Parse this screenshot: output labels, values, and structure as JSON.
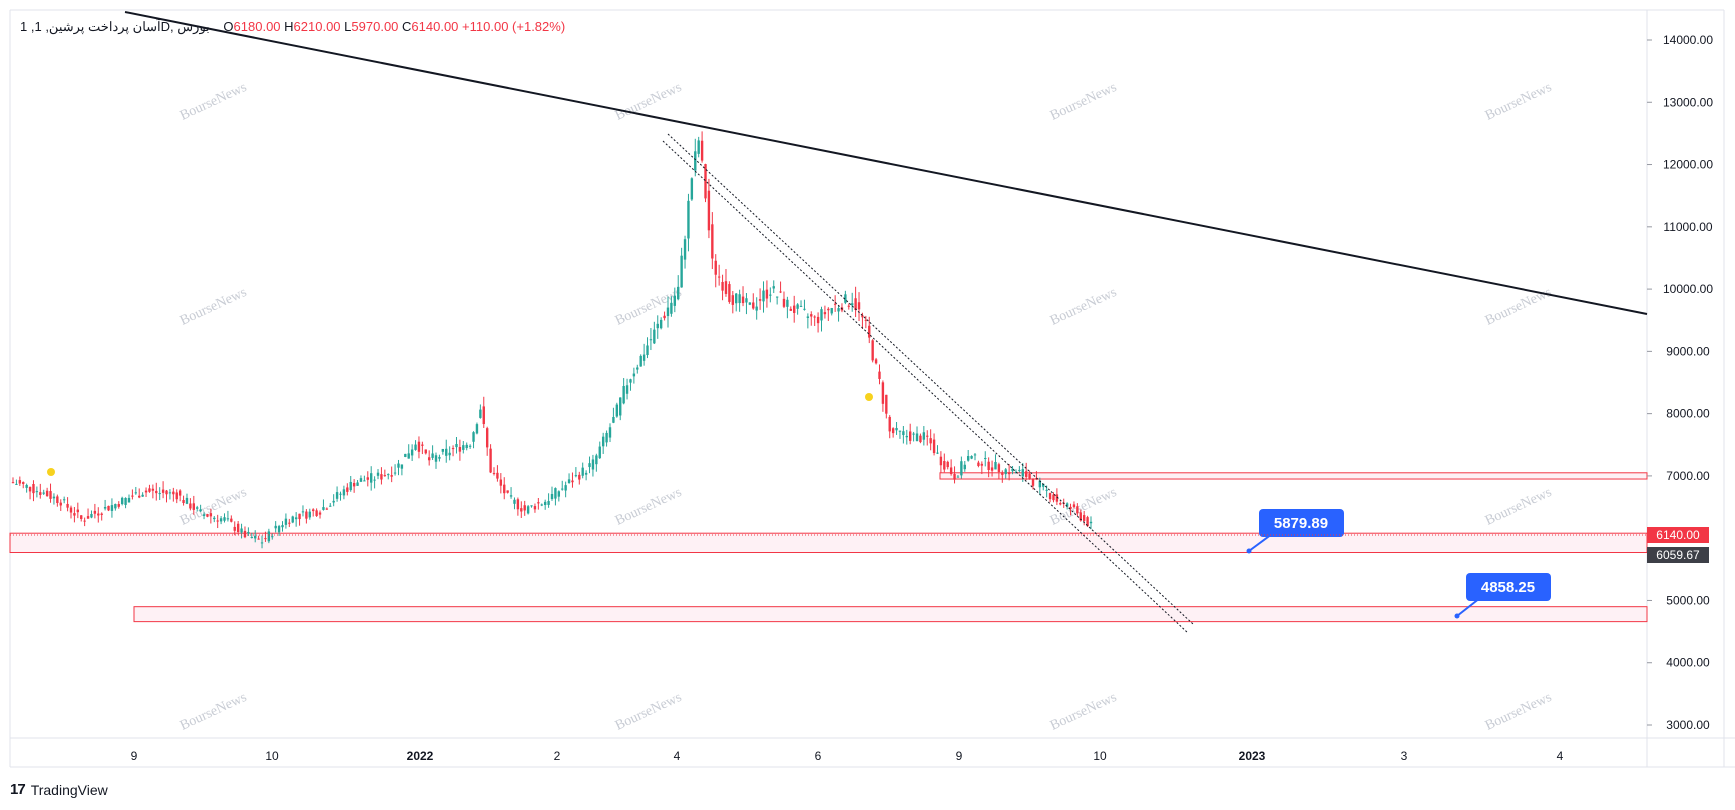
{
  "header": {
    "symbol": "1 ,آسان پرداخت پرشین, 1D, بورس",
    "open_label": "O",
    "open": "6180.00",
    "high_label": "H",
    "high": "6210.00",
    "low_label": "L",
    "low": "5970.00",
    "close_label": "C",
    "close": "6140.00",
    "change": "+110.00 (+1.82%)"
  },
  "footer": {
    "brand": "TradingView",
    "logo_text": "17"
  },
  "watermark": "BourseNews",
  "colors": {
    "up": "#26a69a",
    "down": "#f23645",
    "zone": "#f23645",
    "zone_fill": "#fde7ee",
    "trend": "#131722",
    "callout": "#2962ff"
  },
  "chart_data": {
    "type": "candlestick",
    "ylim": [
      3000,
      14500
    ],
    "y_ticks": [
      "14000.00",
      "13000.00",
      "12000.00",
      "11000.00",
      "10000.00",
      "9000.00",
      "8000.00",
      "7000.00",
      "5000.00",
      "4000.00",
      "3000.00"
    ],
    "x_tick_labels": [
      {
        "label": "9",
        "bold": false
      },
      {
        "label": "10",
        "bold": false
      },
      {
        "label": "2022",
        "bold": true
      },
      {
        "label": "2",
        "bold": false
      },
      {
        "label": "4",
        "bold": false
      },
      {
        "label": "6",
        "bold": false
      },
      {
        "label": "9",
        "bold": false
      },
      {
        "label": "10",
        "bold": false
      },
      {
        "label": "2023",
        "bold": true
      },
      {
        "label": "3",
        "bold": false
      },
      {
        "label": "4",
        "bold": false
      }
    ],
    "price_path": [
      [
        0,
        6900
      ],
      [
        8,
        6750
      ],
      [
        14,
        6600
      ],
      [
        20,
        6300
      ],
      [
        30,
        6550
      ],
      [
        38,
        6750
      ],
      [
        48,
        6700
      ],
      [
        55,
        6400
      ],
      [
        62,
        6300
      ],
      [
        68,
        6050
      ],
      [
        73,
        5950
      ],
      [
        80,
        6300
      ],
      [
        90,
        6450
      ],
      [
        100,
        6900
      ],
      [
        108,
        7000
      ],
      [
        112,
        7100
      ],
      [
        118,
        7550
      ],
      [
        122,
        7250
      ],
      [
        128,
        7400
      ],
      [
        134,
        7550
      ],
      [
        137,
        8100
      ],
      [
        140,
        7100
      ],
      [
        145,
        6650
      ],
      [
        150,
        6450
      ],
      [
        156,
        6600
      ],
      [
        162,
        6850
      ],
      [
        170,
        7200
      ],
      [
        176,
        7900
      ],
      [
        180,
        8500
      ],
      [
        185,
        9000
      ],
      [
        191,
        9600
      ],
      [
        195,
        10000
      ],
      [
        199,
        11800
      ],
      [
        201,
        12400
      ],
      [
        203,
        11500
      ],
      [
        205,
        10400
      ],
      [
        210,
        9900
      ],
      [
        216,
        9700
      ],
      [
        222,
        10000
      ],
      [
        228,
        9700
      ],
      [
        235,
        9500
      ],
      [
        240,
        9700
      ],
      [
        246,
        9850
      ],
      [
        250,
        9400
      ],
      [
        254,
        8500
      ],
      [
        257,
        7700
      ],
      [
        262,
        7650
      ],
      [
        268,
        7600
      ],
      [
        272,
        7250
      ],
      [
        276,
        7000
      ],
      [
        280,
        7300
      ],
      [
        285,
        7200
      ],
      [
        290,
        7100
      ],
      [
        296,
        7050
      ],
      [
        302,
        6800
      ],
      [
        306,
        6600
      ],
      [
        311,
        6450
      ],
      [
        316,
        6200
      ]
    ],
    "total_bars": 317,
    "current_price": "6140.00",
    "prev_level_label": "6059.67",
    "zones": [
      {
        "top": 7050,
        "bottom": 6950
      },
      {
        "top": 6080,
        "bottom": 5770
      },
      {
        "top": 4900,
        "bottom": 4660
      }
    ],
    "callouts": [
      "5879.89",
      "4858.25"
    ]
  }
}
